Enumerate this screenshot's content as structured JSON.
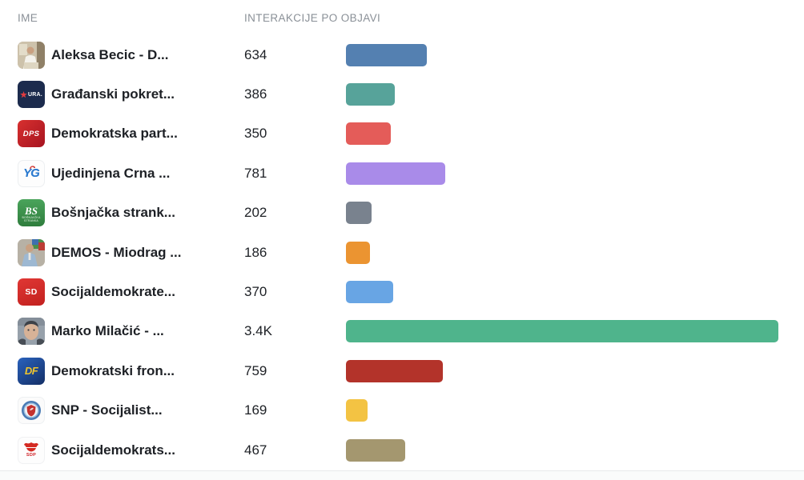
{
  "table": {
    "columns": [
      {
        "label": "IME"
      },
      {
        "label": "INTERAKCIJE PO OBJAVI"
      }
    ],
    "max_value": 3400,
    "rows": [
      {
        "name": "Aleksa Becic - D...",
        "value": "634",
        "value_num": 634,
        "bar_color": "#5480b1",
        "avatar": "photo-man-white-shirt"
      },
      {
        "name": "Građanski pokret...",
        "value": "386",
        "value_num": 386,
        "bar_color": "#57a39a",
        "avatar": "ura-logo",
        "avatar_text": "URA."
      },
      {
        "name": "Demokratska part...",
        "value": "350",
        "value_num": 350,
        "bar_color": "#e45c59",
        "avatar": "dps-logo",
        "avatar_text": "DPS"
      },
      {
        "name": "Ujedinjena Crna ...",
        "value": "781",
        "value_num": 781,
        "bar_color": "#a98be9",
        "avatar": "ycg-logo",
        "avatar_text": "YG"
      },
      {
        "name": "Bošnjačka strank...",
        "value": "202",
        "value_num": 202,
        "bar_color": "#79828e",
        "avatar": "bs-logo",
        "avatar_text": "BS",
        "avatar_caption": "BOŠNJAČKA STRANKA"
      },
      {
        "name": "DEMOS - Miodrag ...",
        "value": "186",
        "value_num": 186,
        "bar_color": "#eb9431",
        "avatar": "photo-man-blue-suit"
      },
      {
        "name": "Socijaldemokrate...",
        "value": "370",
        "value_num": 370,
        "bar_color": "#68a5e4",
        "avatar": "sd-logo",
        "avatar_text": "SD"
      },
      {
        "name": "Marko Milačić - ...",
        "value": "3.4K",
        "value_num": 3400,
        "bar_color": "#4fb48c",
        "avatar": "photo-man-face"
      },
      {
        "name": "Demokratski fron...",
        "value": "759",
        "value_num": 759,
        "bar_color": "#b3332a",
        "avatar": "df-logo",
        "avatar_text": "DF"
      },
      {
        "name": "SNP - Socijalist...",
        "value": "169",
        "value_num": 169,
        "bar_color": "#f3c343",
        "avatar": "snp-logo"
      },
      {
        "name": "Socijaldemokrats...",
        "value": "467",
        "value_num": 467,
        "bar_color": "#a4976f",
        "avatar": "sdp-logo",
        "avatar_text": "SDP"
      }
    ]
  },
  "chart_data": {
    "type": "bar",
    "orientation": "horizontal",
    "title": "",
    "xlabel": "",
    "ylabel": "",
    "columns": [
      "IME",
      "INTERAKCIJE PO OBJAVI"
    ],
    "categories": [
      "Aleksa Becic - D...",
      "Građanski pokret...",
      "Demokratska part...",
      "Ujedinjena Crna ...",
      "Bošnjačka strank...",
      "DEMOS - Miodrag ...",
      "Socijaldemokrate...",
      "Marko Milačić - ...",
      "Demokratski fron...",
      "SNP - Socijalist...",
      "Socijaldemokrats..."
    ],
    "values": [
      634,
      386,
      350,
      781,
      202,
      186,
      370,
      3400,
      759,
      169,
      467
    ],
    "value_labels": [
      "634",
      "386",
      "350",
      "781",
      "202",
      "186",
      "370",
      "3.4K",
      "759",
      "169",
      "467"
    ],
    "bar_colors": [
      "#5480b1",
      "#57a39a",
      "#e45c59",
      "#a98be9",
      "#79828e",
      "#eb9431",
      "#68a5e4",
      "#4fb48c",
      "#b3332a",
      "#f3c343",
      "#a4976f"
    ],
    "xlim": [
      0,
      3400
    ],
    "grid": false,
    "legend": false
  }
}
